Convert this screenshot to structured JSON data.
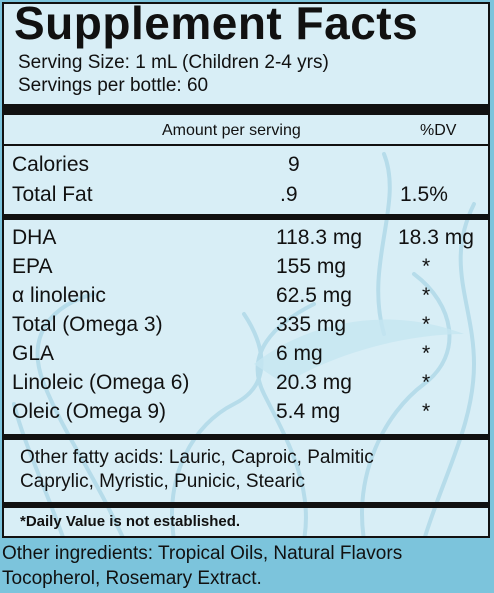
{
  "panel": {
    "title": "Supplement Facts",
    "serving_size": "Serving Size: 1 mL (Children 2-4 yrs)",
    "servings_per_bottle": "Servings per bottle: 60",
    "header_amount": "Amount per serving",
    "header_dv": "%DV",
    "basic_rows": [
      {
        "label": "Calories",
        "amount": "9",
        "dv": ""
      },
      {
        "label": "Total Fat",
        "amount": ".9",
        "dv": "1.5%"
      }
    ],
    "fatty_rows": [
      {
        "label": "DHA",
        "amount": "118.3 mg",
        "dv": "18.3 mg"
      },
      {
        "label": "EPA",
        "amount": "155 mg",
        "dv": "*"
      },
      {
        "label": "α linolenic",
        "amount": "62.5 mg",
        "dv": "*"
      },
      {
        "label": "Total (Omega 3)",
        "amount": "335 mg",
        "dv": "*"
      },
      {
        "label": "GLA",
        "amount": "6 mg",
        "dv": "*"
      },
      {
        "label": "Linoleic (Omega 6)",
        "amount": "20.3 mg",
        "dv": "*"
      },
      {
        "label": "Oleic (Omega 9)",
        "amount": "5.4 mg",
        "dv": "*"
      }
    ],
    "other_fatty_acids": [
      "Other fatty acids: Lauric, Caproic, Palmitic",
      "Caprylic, Myristic, Punicic, Stearic"
    ],
    "dv_note": "*Daily Value is not established."
  },
  "ingredients": [
    "Other ingredients: Tropical Oils, Natural Flavors",
    "Tocopherol, Rosemary Extract."
  ],
  "colors": {
    "panel_background": "#d8eef6",
    "outer_background": "#7cc4dc",
    "text": "#111111",
    "decoration": "#b6dcea"
  }
}
